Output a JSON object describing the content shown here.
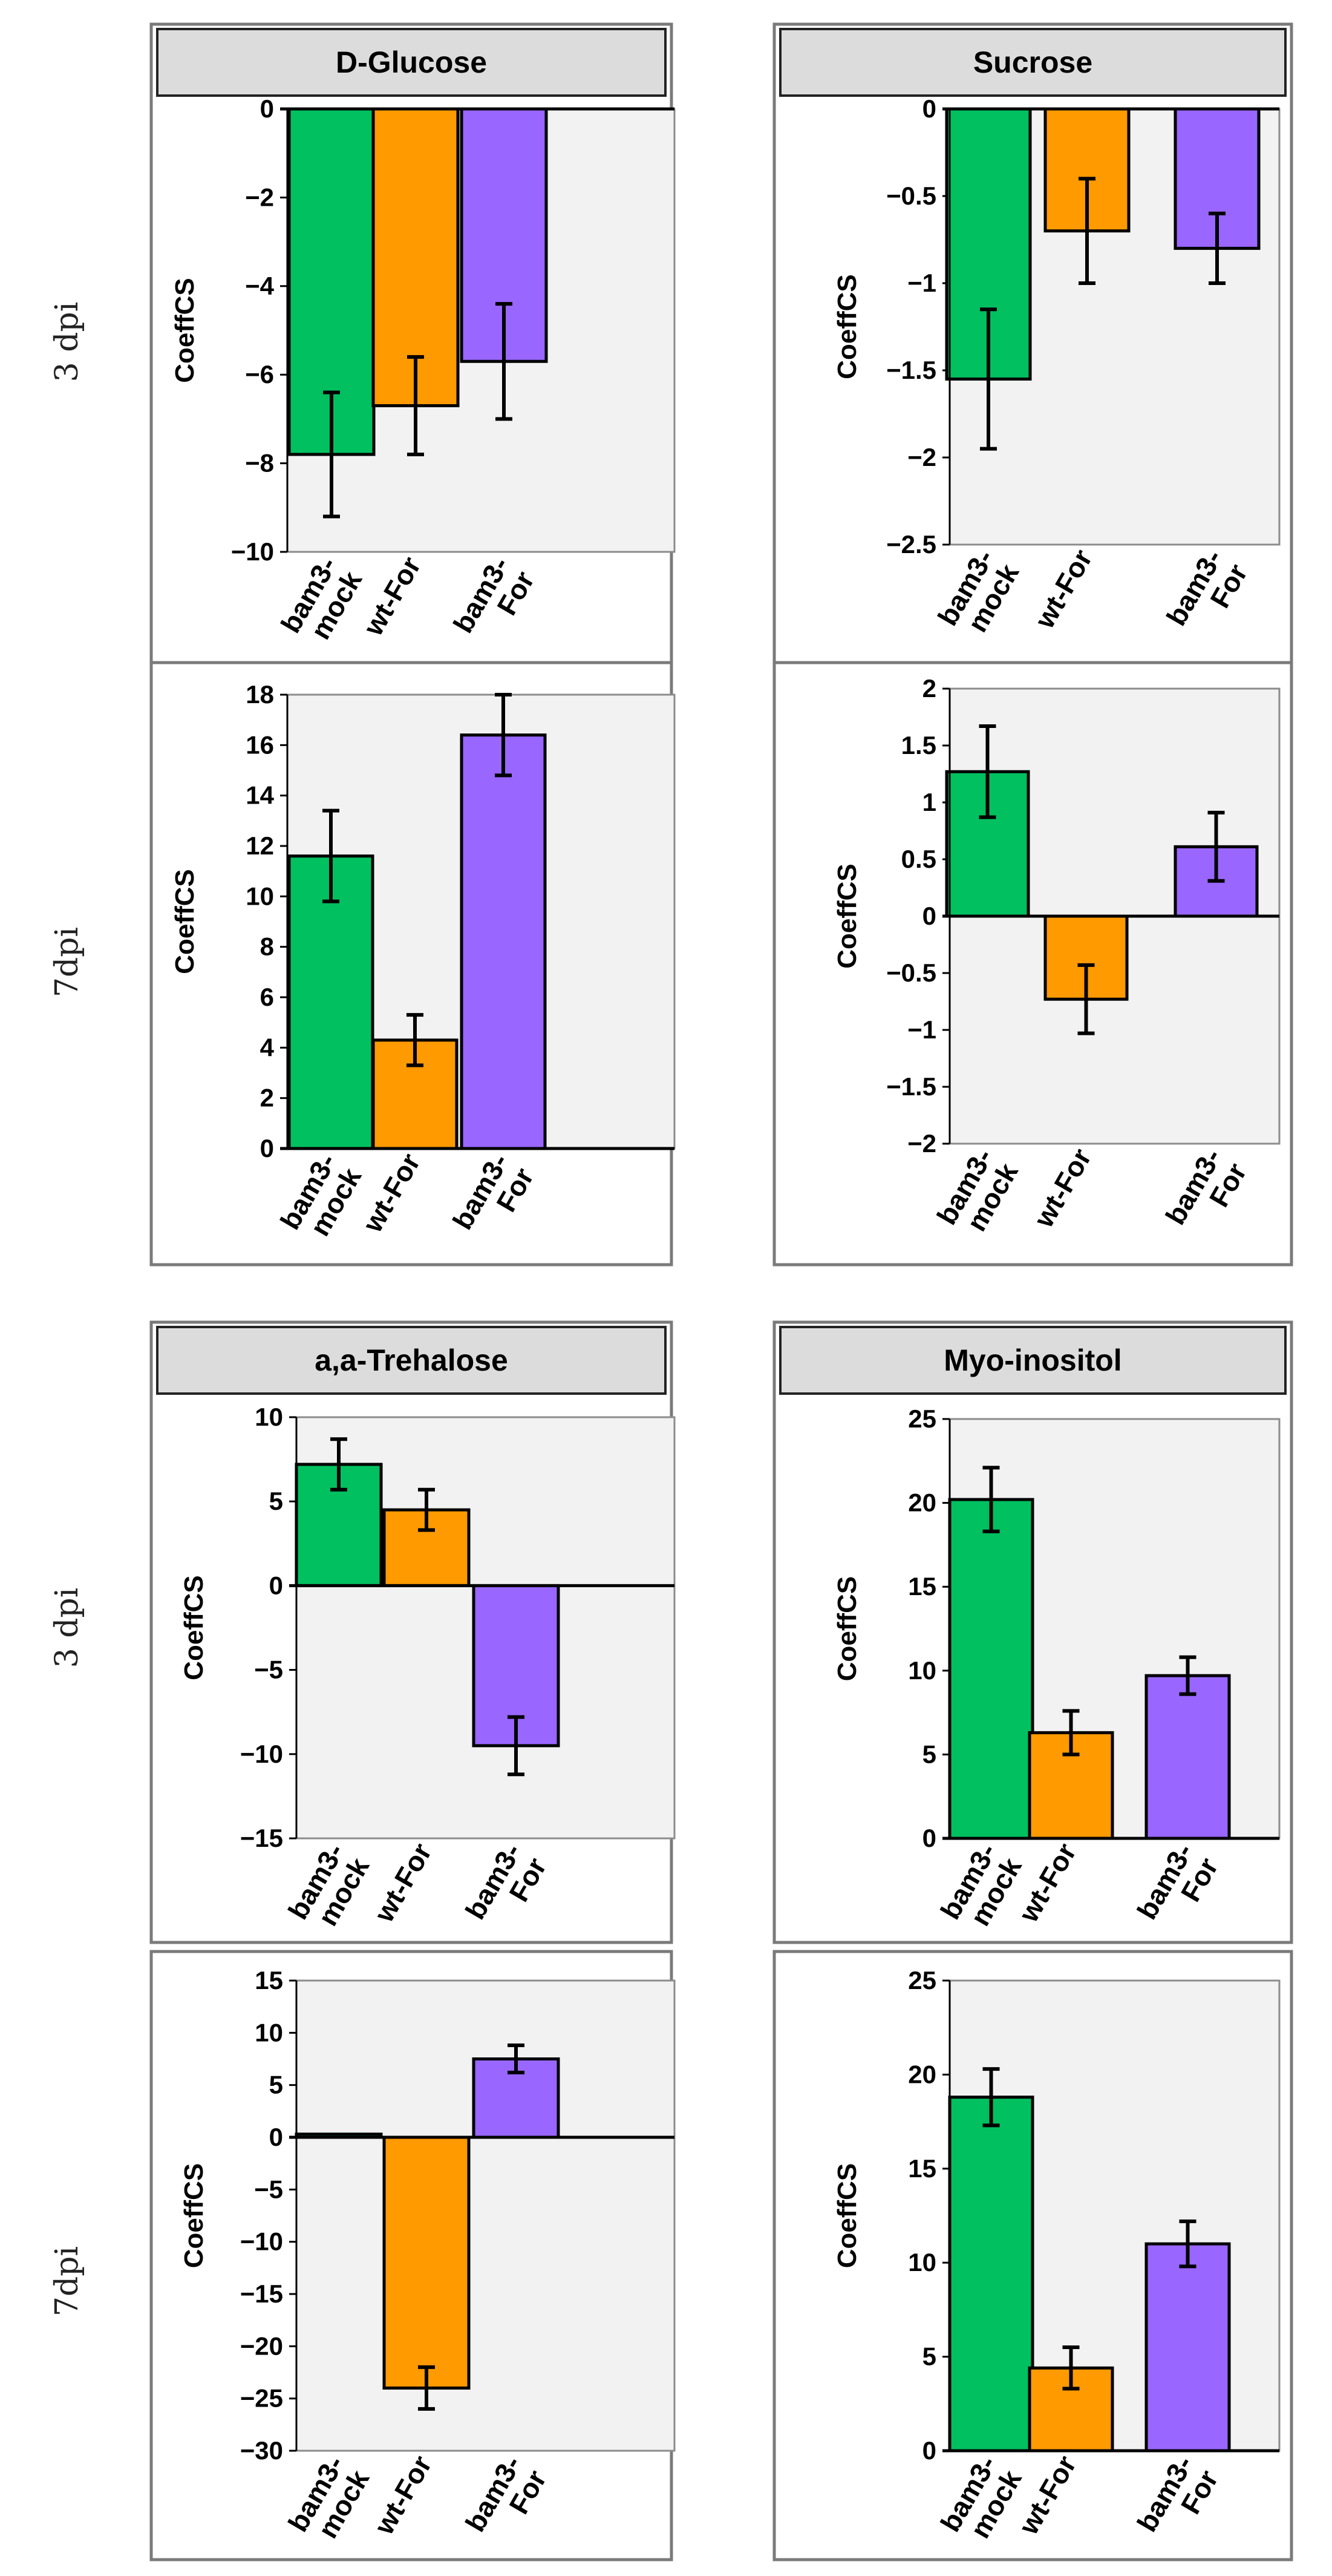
{
  "figure": {
    "row_labels": [
      "3 dpi",
      "7dpi",
      "3 dpi",
      "7dpi"
    ],
    "colors": {
      "bam3-mock": "#00c060",
      "wt-For": "#ff9a00",
      "bam3-For": "#9966ff"
    }
  },
  "chart_data": [
    {
      "type": "bar",
      "title": "D-Glucose",
      "group": "3 dpi",
      "ylabel": "CoeffCS",
      "categories": [
        "bam3-mock",
        "wt-For",
        "bam3-For"
      ],
      "values": [
        -7.8,
        -6.7,
        -5.7
      ],
      "errors": [
        1.4,
        1.1,
        1.3
      ],
      "ylim": [
        -10,
        0
      ],
      "yticks": [
        0,
        -2,
        -4,
        -6,
        -8,
        -10
      ],
      "ytick_labels": [
        "0",
        "−2",
        "−4",
        "−6",
        "−8",
        "−10"
      ]
    },
    {
      "type": "bar",
      "title": "Sucrose",
      "group": "3 dpi",
      "ylabel": "CoeffCS",
      "categories": [
        "bam3-mock",
        "wt-For",
        "bam3-For"
      ],
      "values": [
        -1.55,
        -0.7,
        -0.8
      ],
      "errors": [
        0.4,
        0.3,
        0.2
      ],
      "ylim": [
        -2.5,
        0
      ],
      "yticks": [
        0,
        -0.5,
        -1,
        -1.5,
        -2,
        -2.5
      ],
      "ytick_labels": [
        "0",
        "−0.5",
        "−1",
        "−1.5",
        "−2",
        "−2.5"
      ]
    },
    {
      "type": "bar",
      "title": "",
      "group": "7dpi",
      "ylabel": "CoeffCS",
      "categories": [
        "bam3-mock",
        "wt-For",
        "bam3-For"
      ],
      "values": [
        11.6,
        4.3,
        16.4
      ],
      "errors": [
        1.8,
        1.0,
        1.6
      ],
      "ylim": [
        0,
        18
      ],
      "yticks": [
        18,
        16,
        14,
        12,
        10,
        8,
        6,
        4,
        2,
        0
      ],
      "ytick_labels": [
        "18",
        "16",
        "14",
        "12",
        "10",
        "8",
        "6",
        "4",
        "2",
        "0"
      ]
    },
    {
      "type": "bar",
      "title": "",
      "group": "7dpi",
      "ylabel": "CoeffCS",
      "categories": [
        "bam3-mock",
        "wt-For",
        "bam3-For"
      ],
      "values": [
        1.27,
        -0.73,
        0.61
      ],
      "errors": [
        0.4,
        0.3,
        0.3
      ],
      "ylim": [
        -2,
        2
      ],
      "yticks": [
        2,
        1.5,
        1,
        0.5,
        0,
        -0.5,
        -1,
        -1.5,
        -2
      ],
      "ytick_labels": [
        "2",
        "1.5",
        "1",
        "0.5",
        "0",
        "−0.5",
        "−1",
        "−1.5",
        "−2"
      ]
    },
    {
      "type": "bar",
      "title": "a,a-Trehalose",
      "group": "3 dpi",
      "ylabel": "CoeffCS",
      "categories": [
        "bam3-mock",
        "wt-For",
        "bam3-For"
      ],
      "values": [
        7.2,
        4.5,
        -9.5
      ],
      "errors": [
        1.5,
        1.2,
        1.7
      ],
      "ylim": [
        -15,
        10
      ],
      "yticks": [
        10,
        5,
        0,
        -5,
        -10,
        -15
      ],
      "ytick_labels": [
        "10",
        "5",
        "0",
        "−5",
        "−10",
        "−15"
      ]
    },
    {
      "type": "bar",
      "title": "Myo-inositol",
      "group": "3 dpi",
      "ylabel": "CoeffCS",
      "categories": [
        "bam3-mock",
        "wt-For",
        "bam3-For"
      ],
      "values": [
        20.2,
        6.3,
        9.7
      ],
      "errors": [
        1.9,
        1.3,
        1.1
      ],
      "ylim": [
        0,
        25
      ],
      "yticks": [
        25,
        20,
        15,
        10,
        5,
        0
      ],
      "ytick_labels": [
        "25",
        "20",
        "15",
        "10",
        "5",
        "0"
      ]
    },
    {
      "type": "bar",
      "title": "",
      "group": "7dpi",
      "ylabel": "CoeffCS",
      "categories": [
        "bam3-mock",
        "wt-For",
        "bam3-For"
      ],
      "values": [
        0.3,
        -24.0,
        7.5
      ],
      "errors": [
        0.0,
        2.0,
        1.3
      ],
      "ylim": [
        -30,
        15
      ],
      "yticks": [
        15,
        10,
        5,
        0,
        -5,
        -10,
        -15,
        -20,
        -25,
        -30
      ],
      "ytick_labels": [
        "15",
        "10",
        "5",
        "0",
        "−5",
        "−10",
        "−15",
        "−20",
        "−25",
        "−30"
      ]
    },
    {
      "type": "bar",
      "title": "",
      "group": "7dpi",
      "ylabel": "CoeffCS",
      "categories": [
        "bam3-mock",
        "wt-For",
        "bam3-For"
      ],
      "values": [
        18.8,
        4.4,
        11.0
      ],
      "errors": [
        1.5,
        1.1,
        1.2
      ],
      "ylim": [
        0,
        25
      ],
      "yticks": [
        25,
        20,
        15,
        10,
        5,
        0
      ],
      "ytick_labels": [
        "25",
        "20",
        "15",
        "10",
        "5",
        "0"
      ]
    }
  ]
}
